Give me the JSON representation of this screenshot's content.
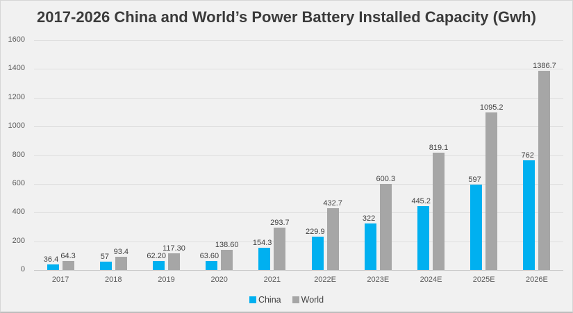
{
  "chart": {
    "title": "2017-2026 China and World’s Power Battery Installed Capacity (Gwh)"
  },
  "chart_data": {
    "type": "bar",
    "title": "2017-2026 China and World’s Power Battery Installed Capacity (Gwh)",
    "categories": [
      "2017",
      "2018",
      "2019",
      "2020",
      "2021",
      "2022E",
      "2023E",
      "2024E",
      "2025E",
      "2026E"
    ],
    "series": [
      {
        "name": "China",
        "color": "#00b0f0",
        "values": [
          36.4,
          57,
          62.2,
          63.6,
          154.3,
          229.9,
          322,
          445.2,
          597,
          762
        ],
        "labels": [
          "36.4",
          "57",
          "62.20",
          "63.60",
          "154.3",
          "229.9",
          "322",
          "445.2",
          "597",
          "762"
        ]
      },
      {
        "name": "World",
        "color": "#a6a6a6",
        "values": [
          64.3,
          93.4,
          117.3,
          138.6,
          293.7,
          432.7,
          600.3,
          819.1,
          1095.2,
          1386.7
        ],
        "labels": [
          "64.3",
          "93.4",
          "117.30",
          "138.60",
          "293.7",
          "432.7",
          "600.3",
          "819.1",
          "1095.2",
          "1386.7"
        ]
      }
    ],
    "xlabel": "",
    "ylabel": "",
    "ylim": [
      0,
      1600
    ],
    "ytick_interval": 200,
    "yticks": [
      "1600",
      "1400",
      "1200",
      "1000",
      "800",
      "600",
      "400",
      "200",
      "0"
    ],
    "grid": true,
    "legend_position": "bottom"
  }
}
